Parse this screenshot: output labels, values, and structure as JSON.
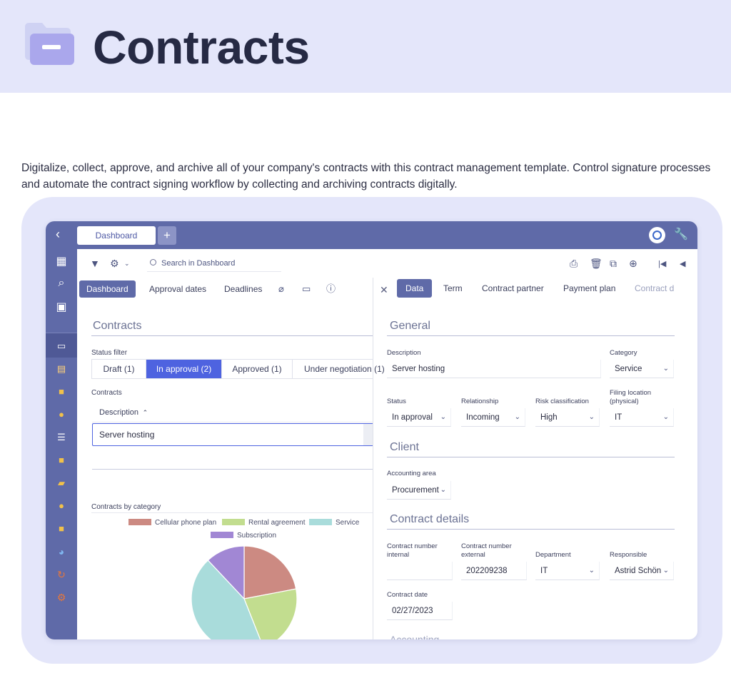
{
  "page": {
    "title": "Contracts",
    "intro": "Digitalize, collect, approve, and archive all of your company's contracts with this contract management template. Control signature processes and automate the contract signing workflow by collecting and archiving contracts digitally."
  },
  "topbar": {
    "back_icon": "chevron-left-icon",
    "tab_label": "Dashboard",
    "add_label": "+"
  },
  "toolbar": {
    "search_placeholder": "Search in Dashboard"
  },
  "left": {
    "tabs": [
      "Dashboard",
      "Approval dates",
      "Deadlines"
    ],
    "section_title": "Contracts",
    "status_filter_label": "Status filter",
    "status_filters": [
      "Draft (1)",
      "In approval (2)",
      "Approved (1)",
      "Under negotiation (1)"
    ],
    "contracts_label": "Contracts",
    "column_header": "Description",
    "rows": [
      "Server hosting"
    ],
    "chart_label": "Contracts by category"
  },
  "chart_data": {
    "type": "pie",
    "title": "",
    "categories": [
      "Cellular phone plan",
      "Rental agreement",
      "Service",
      "Subscription"
    ],
    "values": [
      22,
      22,
      44,
      12
    ],
    "colors": [
      "#cc8a82",
      "#c2dd8f",
      "#a9dcdb",
      "#a187d4"
    ],
    "legend": "top"
  },
  "right": {
    "tabs": [
      "Data",
      "Term",
      "Contract partner",
      "Payment plan",
      "Contract d"
    ],
    "general": {
      "title": "General",
      "description_label": "Description",
      "description_value": "Server hosting",
      "category_label": "Category",
      "category_value": "Service",
      "status_label": "Status",
      "status_value": "In approval",
      "relationship_label": "Relationship",
      "relationship_value": "Incoming",
      "risk_label": "Risk classification",
      "risk_value": "High",
      "filing_label": "Filing location (physical)",
      "filing_value": "IT"
    },
    "client": {
      "title": "Client",
      "accounting_label": "Accounting area",
      "accounting_value": "Procurement"
    },
    "details": {
      "title": "Contract details",
      "internal_label": "Contract number internal",
      "internal_value": "",
      "external_label": "Contract number external",
      "external_value": "202209238",
      "department_label": "Department",
      "department_value": "IT",
      "responsible_label": "Responsible",
      "responsible_value": "Astrid Schön",
      "date_label": "Contract date",
      "date_value": "02/27/2023"
    },
    "next_section_title": "Accounting"
  }
}
